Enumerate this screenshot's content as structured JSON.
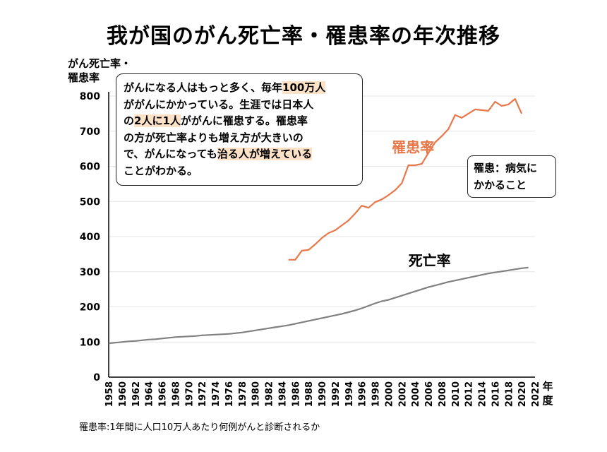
{
  "title": "我が国のがん死亡率・罹患率の年次推移",
  "callout": {
    "line1_a": "がんになる人はもっと多く、毎年",
    "line1_hl": "100万人",
    "line2": "ががんにかかっている。生涯では日本人",
    "line3_a": "の",
    "line3_hl1": "2人に1人",
    "line3_b": "ががんに罹患する。罹患率",
    "line4": "の方が死亡率よりも増え方が大きいの",
    "line5_a": "で、がんになっても",
    "line5_hl": "治る人が増えている",
    "line6": "ことがわかる。"
  },
  "definition": {
    "line1": "罹患：病気に",
    "line2": "かかること"
  },
  "footnote": "罹患率:1年間に人口10万人あたり何例がんと診断されるか",
  "chart_data": {
    "type": "line",
    "ylabel_line1": "がん死亡率・",
    "ylabel_line2": "罹患率",
    "xlabel_line1": "年",
    "xlabel_line2": "度",
    "ylim": [
      0,
      800
    ],
    "yticks": [
      "0",
      "100",
      "200",
      "300",
      "400",
      "500",
      "600",
      "700",
      "800"
    ],
    "xlim": [
      1958,
      2022
    ],
    "xticks": [
      "1958",
      "1960",
      "1962",
      "1964",
      "1966",
      "1968",
      "1970",
      "1972",
      "1974",
      "1976",
      "1978",
      "1980",
      "1982",
      "1984",
      "1986",
      "1988",
      "1990",
      "1992",
      "1994",
      "1996",
      "1998",
      "2000",
      "2002",
      "2004",
      "2006",
      "2008",
      "2010",
      "2012",
      "2014",
      "2016",
      "2018",
      "2020",
      "2022"
    ],
    "grid": true,
    "series": [
      {
        "name": "死亡率",
        "color": "#808080",
        "x": [
          1958,
          1959,
          1960,
          1961,
          1962,
          1963,
          1964,
          1965,
          1966,
          1967,
          1968,
          1969,
          1970,
          1971,
          1972,
          1973,
          1974,
          1975,
          1976,
          1977,
          1978,
          1979,
          1980,
          1981,
          1982,
          1983,
          1984,
          1985,
          1986,
          1987,
          1988,
          1989,
          1990,
          1991,
          1992,
          1993,
          1994,
          1995,
          1996,
          1997,
          1998,
          1999,
          2000,
          2001,
          2002,
          2003,
          2004,
          2005,
          2006,
          2007,
          2008,
          2009,
          2010,
          2011,
          2012,
          2013,
          2014,
          2015,
          2016,
          2017,
          2018,
          2019,
          2020,
          2021
        ],
        "values": [
          96,
          98,
          100,
          102,
          103,
          105,
          107,
          108,
          110,
          112,
          114,
          115,
          116,
          117,
          119,
          120,
          121,
          122,
          123,
          125,
          127,
          130,
          133,
          136,
          139,
          142,
          145,
          148,
          152,
          156,
          160,
          164,
          168,
          172,
          176,
          180,
          185,
          190,
          196,
          203,
          210,
          216,
          220,
          226,
          232,
          238,
          244,
          250,
          256,
          261,
          266,
          271,
          275,
          279,
          283,
          287,
          291,
          295,
          298,
          301,
          304,
          307,
          310,
          312
        ]
      },
      {
        "name": "罹患率",
        "color": "#e8784a",
        "x": [
          1985,
          1986,
          1987,
          1988,
          1989,
          1990,
          1991,
          1992,
          1993,
          1994,
          1995,
          1996,
          1997,
          1998,
          1999,
          2000,
          2001,
          2002,
          2003,
          2004,
          2005,
          2006,
          2007,
          2008,
          2009,
          2010,
          2011,
          2012,
          2013,
          2014,
          2015,
          2016,
          2017,
          2018,
          2019,
          2020
        ],
        "values": [
          334,
          334,
          360,
          362,
          378,
          396,
          410,
          418,
          432,
          446,
          466,
          488,
          482,
          498,
          506,
          518,
          532,
          552,
          603,
          603,
          607,
          638,
          668,
          686,
          706,
          746,
          738,
          750,
          762,
          760,
          758,
          784,
          772,
          776,
          792,
          750
        ]
      }
    ]
  }
}
